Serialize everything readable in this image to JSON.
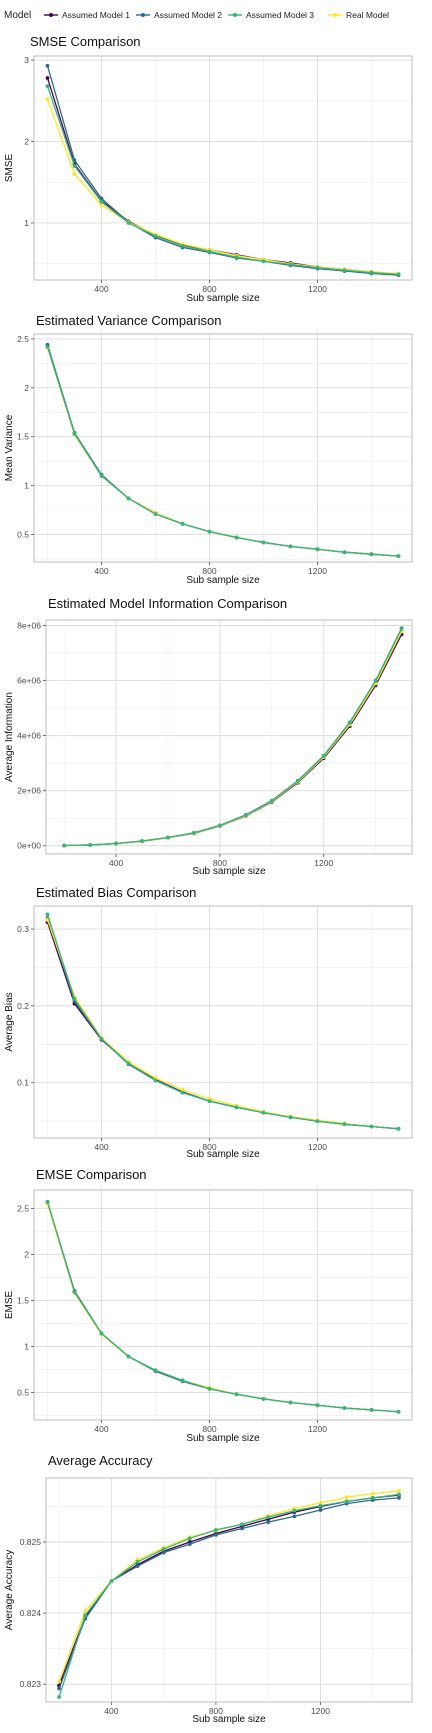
{
  "legend": {
    "title": "Model",
    "entries": [
      {
        "name": "Assumed Model 1",
        "color": "#440154"
      },
      {
        "name": "Assumed Model 2",
        "color": "#31688e"
      },
      {
        "name": "Assumed Model 3",
        "color": "#35b779"
      },
      {
        "name": "Real Model",
        "color": "#fde725"
      }
    ]
  },
  "chart_data": [
    {
      "type": "line",
      "title": "SMSE Comparison",
      "xlabel": "Sub sample size",
      "ylabel": "SMSE",
      "xlim": [
        150,
        1550
      ],
      "ylim": [
        0.3,
        3.05
      ],
      "xticks": [
        400,
        800,
        1200
      ],
      "yticks": [
        1,
        2,
        3
      ],
      "grid": true,
      "x": [
        200,
        300,
        400,
        500,
        600,
        700,
        800,
        900,
        1000,
        1100,
        1200,
        1300,
        1400,
        1500
      ],
      "series": [
        {
          "name": "Assumed Model 1",
          "values": [
            2.78,
            1.72,
            1.27,
            1.02,
            0.85,
            0.73,
            0.67,
            0.61,
            0.55,
            0.51,
            0.46,
            0.43,
            0.4,
            0.37
          ]
        },
        {
          "name": "Assumed Model 2",
          "values": [
            2.93,
            1.77,
            1.3,
            1.01,
            0.82,
            0.7,
            0.64,
            0.57,
            0.53,
            0.48,
            0.44,
            0.41,
            0.38,
            0.36
          ]
        },
        {
          "name": "Assumed Model 3",
          "values": [
            2.68,
            1.7,
            1.26,
            1.0,
            0.84,
            0.72,
            0.65,
            0.58,
            0.53,
            0.49,
            0.45,
            0.42,
            0.39,
            0.37
          ]
        },
        {
          "name": "Real Model",
          "values": [
            2.52,
            1.6,
            1.22,
            1.01,
            0.86,
            0.74,
            0.67,
            0.6,
            0.55,
            0.5,
            0.46,
            0.43,
            0.4,
            0.38
          ]
        }
      ]
    },
    {
      "type": "line",
      "title": "Estimated Variance Comparison",
      "xlabel": "Sub sample size",
      "ylabel": "Mean Variance",
      "xlim": [
        150,
        1550
      ],
      "ylim": [
        0.22,
        2.55
      ],
      "xticks": [
        400,
        800,
        1200
      ],
      "yticks": [
        0.5,
        1.0,
        1.5,
        2.0,
        2.5
      ],
      "grid": true,
      "x": [
        200,
        300,
        400,
        500,
        600,
        700,
        800,
        900,
        1000,
        1100,
        1200,
        1300,
        1400,
        1500
      ],
      "series": [
        {
          "name": "Assumed Model 1",
          "values": [
            2.43,
            1.53,
            1.11,
            0.87,
            0.72,
            0.61,
            0.53,
            0.47,
            0.42,
            0.38,
            0.35,
            0.32,
            0.3,
            0.28
          ]
        },
        {
          "name": "Assumed Model 2",
          "values": [
            2.44,
            1.54,
            1.11,
            0.87,
            0.71,
            0.61,
            0.53,
            0.47,
            0.42,
            0.38,
            0.35,
            0.32,
            0.3,
            0.28
          ]
        },
        {
          "name": "Assumed Model 3",
          "values": [
            2.42,
            1.53,
            1.1,
            0.87,
            0.71,
            0.61,
            0.53,
            0.47,
            0.42,
            0.38,
            0.35,
            0.32,
            0.3,
            0.28
          ]
        },
        {
          "name": "Real Model",
          "values": [
            2.41,
            1.52,
            1.1,
            0.87,
            0.72,
            0.61,
            0.53,
            0.47,
            0.42,
            0.38,
            0.35,
            0.32,
            0.3,
            0.28
          ]
        }
      ]
    },
    {
      "type": "line",
      "title": "Estimated Model Information Comparison",
      "xlabel": "Sub sample size",
      "ylabel": "Average Information",
      "xlim": [
        130,
        1540
      ],
      "ylim": [
        -300000,
        8200000
      ],
      "xticks": [
        400,
        800,
        1200
      ],
      "yticks": [
        0,
        2000000,
        4000000,
        6000000,
        8000000
      ],
      "ytick_labels": [
        "0e+00",
        "2e+06",
        "4e+06",
        "6e+06",
        "8e+06"
      ],
      "grid": true,
      "x": [
        200,
        300,
        400,
        500,
        600,
        700,
        800,
        900,
        1000,
        1100,
        1200,
        1300,
        1400,
        1500
      ],
      "series": [
        {
          "name": "Assumed Model 1",
          "values": [
            10000,
            30000,
            80000,
            160000,
            290000,
            450000,
            720000,
            1080000,
            1590000,
            2290000,
            3180000,
            4340000,
            5830000,
            7680000
          ]
        },
        {
          "name": "Assumed Model 2",
          "values": [
            10000,
            30000,
            80000,
            170000,
            300000,
            470000,
            740000,
            1120000,
            1640000,
            2360000,
            3270000,
            4480000,
            6000000,
            7900000
          ]
        },
        {
          "name": "Assumed Model 3",
          "values": [
            10000,
            30000,
            80000,
            170000,
            300000,
            470000,
            740000,
            1110000,
            1630000,
            2350000,
            3260000,
            4470000,
            5990000,
            7880000
          ]
        },
        {
          "name": "Real Model",
          "values": [
            10000,
            30000,
            80000,
            160000,
            290000,
            460000,
            730000,
            1090000,
            1610000,
            2320000,
            3220000,
            4400000,
            5900000,
            7780000
          ]
        }
      ]
    },
    {
      "type": "line",
      "title": "Estimated Bias Comparison",
      "xlabel": "Sub sample size",
      "ylabel": "Average Bias",
      "xlim": [
        150,
        1550
      ],
      "ylim": [
        0.028,
        0.33
      ],
      "xticks": [
        400,
        800,
        1200
      ],
      "yticks": [
        0.1,
        0.2,
        0.3
      ],
      "grid": true,
      "x": [
        200,
        300,
        400,
        500,
        600,
        700,
        800,
        900,
        1000,
        1100,
        1200,
        1300,
        1400,
        1500
      ],
      "series": [
        {
          "name": "Assumed Model 1",
          "values": [
            0.309,
            0.203,
            0.156,
            0.125,
            0.104,
            0.088,
            0.076,
            0.068,
            0.061,
            0.055,
            0.05,
            0.046,
            0.043,
            0.04
          ]
        },
        {
          "name": "Assumed Model 2",
          "values": [
            0.314,
            0.206,
            0.157,
            0.124,
            0.103,
            0.087,
            0.076,
            0.068,
            0.061,
            0.055,
            0.05,
            0.046,
            0.043,
            0.04
          ]
        },
        {
          "name": "Assumed Model 3",
          "values": [
            0.319,
            0.209,
            0.157,
            0.125,
            0.103,
            0.087,
            0.076,
            0.068,
            0.061,
            0.055,
            0.05,
            0.046,
            0.043,
            0.04
          ]
        },
        {
          "name": "Real Model",
          "values": [
            0.312,
            0.212,
            0.158,
            0.127,
            0.106,
            0.091,
            0.079,
            0.07,
            0.062,
            0.056,
            0.051,
            0.047,
            0.043,
            0.04
          ]
        }
      ]
    },
    {
      "type": "line",
      "title": "EMSE Comparison",
      "xlabel": "Sub sample size",
      "ylabel": "EMSE",
      "xlim": [
        150,
        1550
      ],
      "ylim": [
        0.2,
        2.7
      ],
      "xticks": [
        400,
        800,
        1200
      ],
      "yticks": [
        0.5,
        1.0,
        1.5,
        2.0,
        2.5
      ],
      "grid": true,
      "x": [
        200,
        300,
        400,
        500,
        600,
        700,
        800,
        900,
        1000,
        1100,
        1200,
        1300,
        1400,
        1500
      ],
      "series": [
        {
          "name": "Assumed Model 1",
          "values": [
            2.57,
            1.6,
            1.14,
            0.89,
            0.74,
            0.63,
            0.54,
            0.48,
            0.43,
            0.39,
            0.36,
            0.33,
            0.31,
            0.29
          ]
        },
        {
          "name": "Assumed Model 2",
          "values": [
            2.56,
            1.59,
            1.14,
            0.89,
            0.73,
            0.62,
            0.54,
            0.48,
            0.43,
            0.39,
            0.36,
            0.33,
            0.31,
            0.29
          ]
        },
        {
          "name": "Assumed Model 3",
          "values": [
            2.57,
            1.59,
            1.14,
            0.89,
            0.74,
            0.63,
            0.54,
            0.48,
            0.43,
            0.39,
            0.36,
            0.33,
            0.31,
            0.29
          ]
        },
        {
          "name": "Real Model",
          "values": [
            2.55,
            1.58,
            1.13,
            0.89,
            0.74,
            0.63,
            0.55,
            0.48,
            0.43,
            0.39,
            0.36,
            0.33,
            0.31,
            0.29
          ]
        }
      ]
    },
    {
      "type": "line",
      "title": "Average Accuracy",
      "xlabel": "Sub sample size",
      "ylabel": "Average Accuracy",
      "xlim": [
        150,
        1550
      ],
      "ylim": [
        0.82275,
        0.8259
      ],
      "xticks": [
        400,
        800,
        1200
      ],
      "yticks": [
        0.823,
        0.824,
        0.825
      ],
      "grid": true,
      "x": [
        200,
        300,
        400,
        500,
        600,
        700,
        800,
        900,
        1000,
        1100,
        1200,
        1300,
        1400,
        1500
      ],
      "series": [
        {
          "name": "Assumed Model 1",
          "values": [
            0.82298,
            0.82395,
            0.82445,
            0.82468,
            0.82487,
            0.825,
            0.82512,
            0.82522,
            0.82532,
            0.82542,
            0.8255,
            0.82557,
            0.82562,
            0.82566
          ]
        },
        {
          "name": "Assumed Model 2",
          "values": [
            0.82294,
            0.82392,
            0.82445,
            0.82466,
            0.82485,
            0.82497,
            0.8251,
            0.82519,
            0.82528,
            0.82536,
            0.82545,
            0.82554,
            0.82559,
            0.82562
          ]
        },
        {
          "name": "Assumed Model 3",
          "values": [
            0.82282,
            0.82397,
            0.82445,
            0.82472,
            0.8249,
            0.82505,
            0.82517,
            0.82525,
            0.82535,
            0.82544,
            0.82551,
            0.82557,
            0.82562,
            0.82567
          ]
        },
        {
          "name": "Real Model",
          "values": [
            0.82304,
            0.82403,
            0.82445,
            0.82475,
            0.82492,
            0.82507,
            0.82516,
            0.82525,
            0.82537,
            0.82547,
            0.82555,
            0.82563,
            0.82568,
            0.82572
          ]
        }
      ]
    }
  ]
}
